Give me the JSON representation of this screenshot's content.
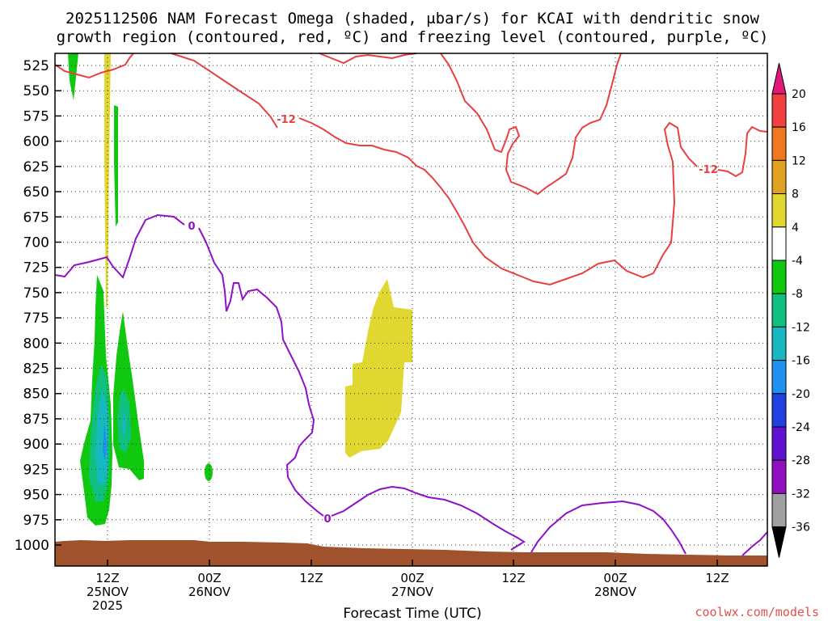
{
  "chart_data": {
    "type": "time-height",
    "title": [
      "2025112506 NAM Forecast Omega (shaded, μbar/s) for KCAI with dendritic snow",
      "growth region (contoured, red, ºC) and freezing level (contoured, purple, ºC)"
    ],
    "xlabel": "Forecast Time (UTC)",
    "credit": "coolwx.com/models",
    "y_ticks": [
      "525",
      "550",
      "575",
      "600",
      "625",
      "650",
      "675",
      "700",
      "725",
      "750",
      "775",
      "800",
      "825",
      "850",
      "875",
      "900",
      "925",
      "950",
      "975",
      "1000"
    ],
    "x_ticks": [
      {
        "line1": "12Z",
        "line2": "25NOV",
        "line3": "2025"
      },
      {
        "line1": "00Z",
        "line2": "26NOV",
        "line3": ""
      },
      {
        "line1": "12Z",
        "line2": "",
        "line3": ""
      },
      {
        "line1": "00Z",
        "line2": "27NOV",
        "line3": ""
      },
      {
        "line1": "12Z",
        "line2": "",
        "line3": ""
      },
      {
        "line1": "00Z",
        "line2": "28NOV",
        "line3": ""
      },
      {
        "line1": "12Z",
        "line2": "",
        "line3": ""
      }
    ],
    "colorbar": {
      "labels": [
        "20",
        "16",
        "12",
        "8",
        "4",
        "-4",
        "-8",
        "-12",
        "-16",
        "-20",
        "-24",
        "-28",
        "-32",
        "-36"
      ],
      "colors": [
        "#e0197a",
        "#f04040",
        "#f07820",
        "#e0a020",
        "#e0d830",
        "#ffffff",
        "#10c810",
        "#10c080",
        "#18b8c0",
        "#2090f0",
        "#2040e0",
        "#6010d0",
        "#9010c0",
        "#a0a0a0",
        "#000000"
      ]
    },
    "contour_labels": {
      "red_upper": "-12",
      "red_right": "-12",
      "purple_upper": "0",
      "purple_lower": "0"
    },
    "colors": {
      "dgz": "#e84040",
      "freezing": "#9010c8",
      "terrain": "#a0522d",
      "green": "#10c810",
      "teal": "#10c080",
      "cyan": "#18b8c0",
      "blue": "#2090f0",
      "yellow": "#e0d830",
      "credit": "#e05050"
    }
  }
}
